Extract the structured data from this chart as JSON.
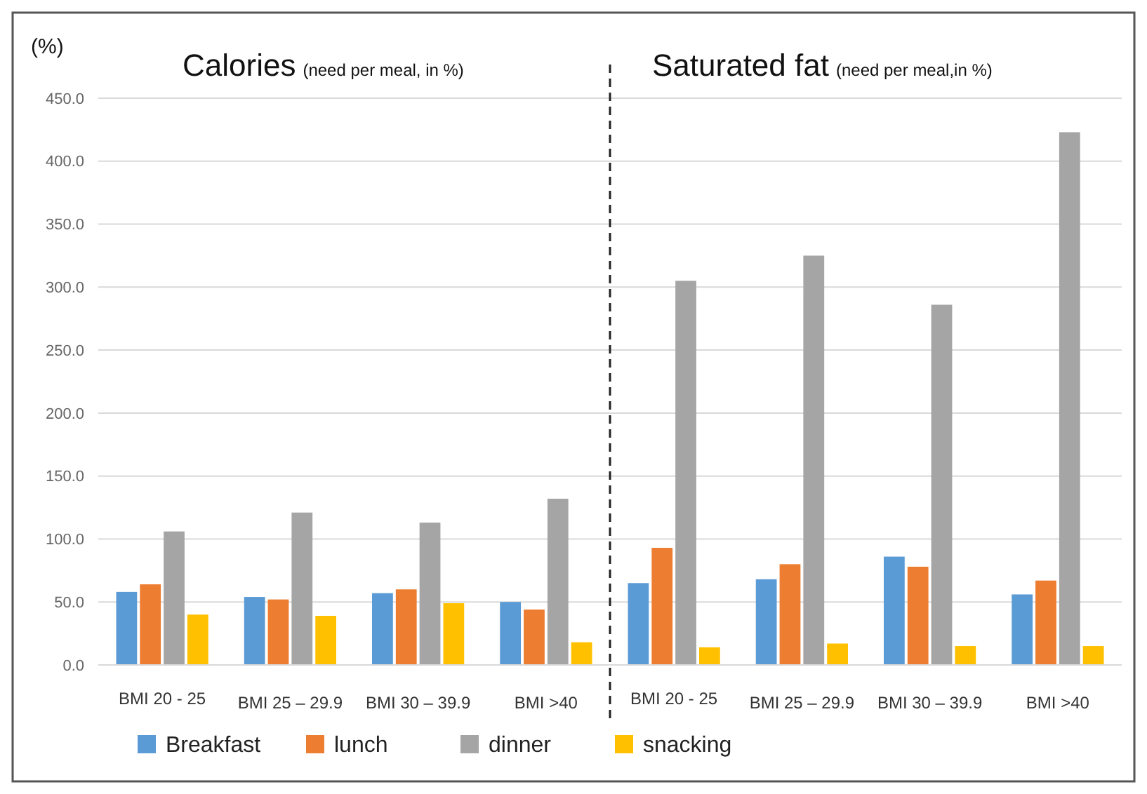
{
  "chart_data": {
    "type": "bar",
    "ylabel": "(%)",
    "annotations": [
      "Calories",
      "(need per meal, in %)",
      "Saturated fat",
      "(need per meal,in %)"
    ],
    "categories": [
      "BMI 20 - 25",
      "BMI 25 – 29.9",
      "BMI 30 – 39.9",
      "BMI >40",
      "BMI 20 - 25",
      "BMI 25 – 29.9",
      "BMI 30 – 39.9",
      "BMI >40"
    ],
    "series": [
      {
        "name": "Breakfast",
        "color": "#5b9bd5",
        "values": [
          58,
          54,
          57,
          50,
          65,
          68,
          86,
          56
        ]
      },
      {
        "name": "lunch",
        "color": "#ed7d31",
        "values": [
          64,
          52,
          60,
          44,
          93,
          80,
          78,
          67
        ]
      },
      {
        "name": "dinner",
        "color": "#a5a5a5",
        "values": [
          106,
          121,
          113,
          132,
          305,
          325,
          286,
          423
        ]
      },
      {
        "name": "snacking",
        "color": "#ffc000",
        "values": [
          40,
          39,
          49,
          18,
          14,
          17,
          15,
          15
        ]
      }
    ],
    "ylim": [
      0,
      450
    ],
    "yticks": [
      {
        "value": 0,
        "label": "0.0"
      },
      {
        "value": 50,
        "label": "50.0"
      },
      {
        "value": 100,
        "label": "100.0"
      },
      {
        "value": 150,
        "label": "150.0"
      },
      {
        "value": 200,
        "label": "200.0"
      },
      {
        "value": 250,
        "label": "250.0"
      },
      {
        "value": 300,
        "label": "300.0"
      },
      {
        "value": 350,
        "label": "350.0"
      },
      {
        "value": 400,
        "label": "400.0"
      },
      {
        "value": 450,
        "label": "450.0"
      }
    ],
    "grid": "y",
    "legend": "bottom"
  }
}
